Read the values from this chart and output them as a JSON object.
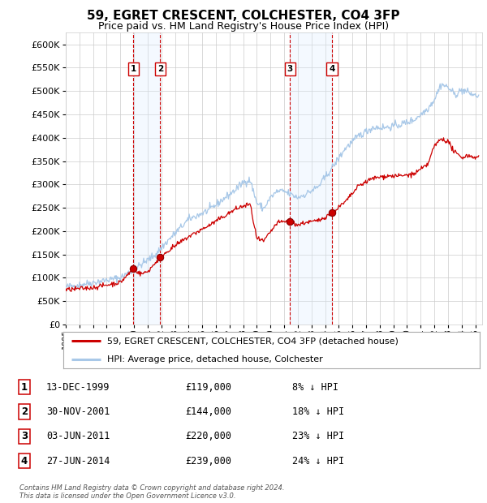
{
  "title": "59, EGRET CRESCENT, COLCHESTER, CO4 3FP",
  "subtitle": "Price paid vs. HM Land Registry's House Price Index (HPI)",
  "ylim": [
    0,
    625000
  ],
  "yticks": [
    0,
    50000,
    100000,
    150000,
    200000,
    250000,
    300000,
    350000,
    400000,
    450000,
    500000,
    550000,
    600000
  ],
  "xlim_start": 1995.0,
  "xlim_end": 2025.5,
  "background_color": "#ffffff",
  "grid_color": "#cccccc",
  "transactions": [
    {
      "label": "1",
      "date_str": "13-DEC-1999",
      "year": 1999.958,
      "price": 119000,
      "pct": "8%"
    },
    {
      "label": "2",
      "date_str": "30-NOV-2001",
      "year": 2001.917,
      "price": 144000,
      "pct": "18%"
    },
    {
      "label": "3",
      "date_str": "03-JUN-2011",
      "year": 2011.417,
      "price": 220000,
      "pct": "23%"
    },
    {
      "label": "4",
      "date_str": "27-JUN-2014",
      "year": 2014.5,
      "price": 239000,
      "pct": "24%"
    }
  ],
  "legend_line1": "59, EGRET CRESCENT, COLCHESTER, CO4 3FP (detached house)",
  "legend_line2": "HPI: Average price, detached house, Colchester",
  "footer1": "Contains HM Land Registry data © Crown copyright and database right 2024.",
  "footer2": "This data is licensed under the Open Government Licence v3.0.",
  "hpi_color": "#a8c8e8",
  "price_color": "#cc0000",
  "marker_color": "#cc0000",
  "vline_color": "#cc0000",
  "shade_color": "#ddeeff",
  "title_fontsize": 11,
  "subtitle_fontsize": 9
}
